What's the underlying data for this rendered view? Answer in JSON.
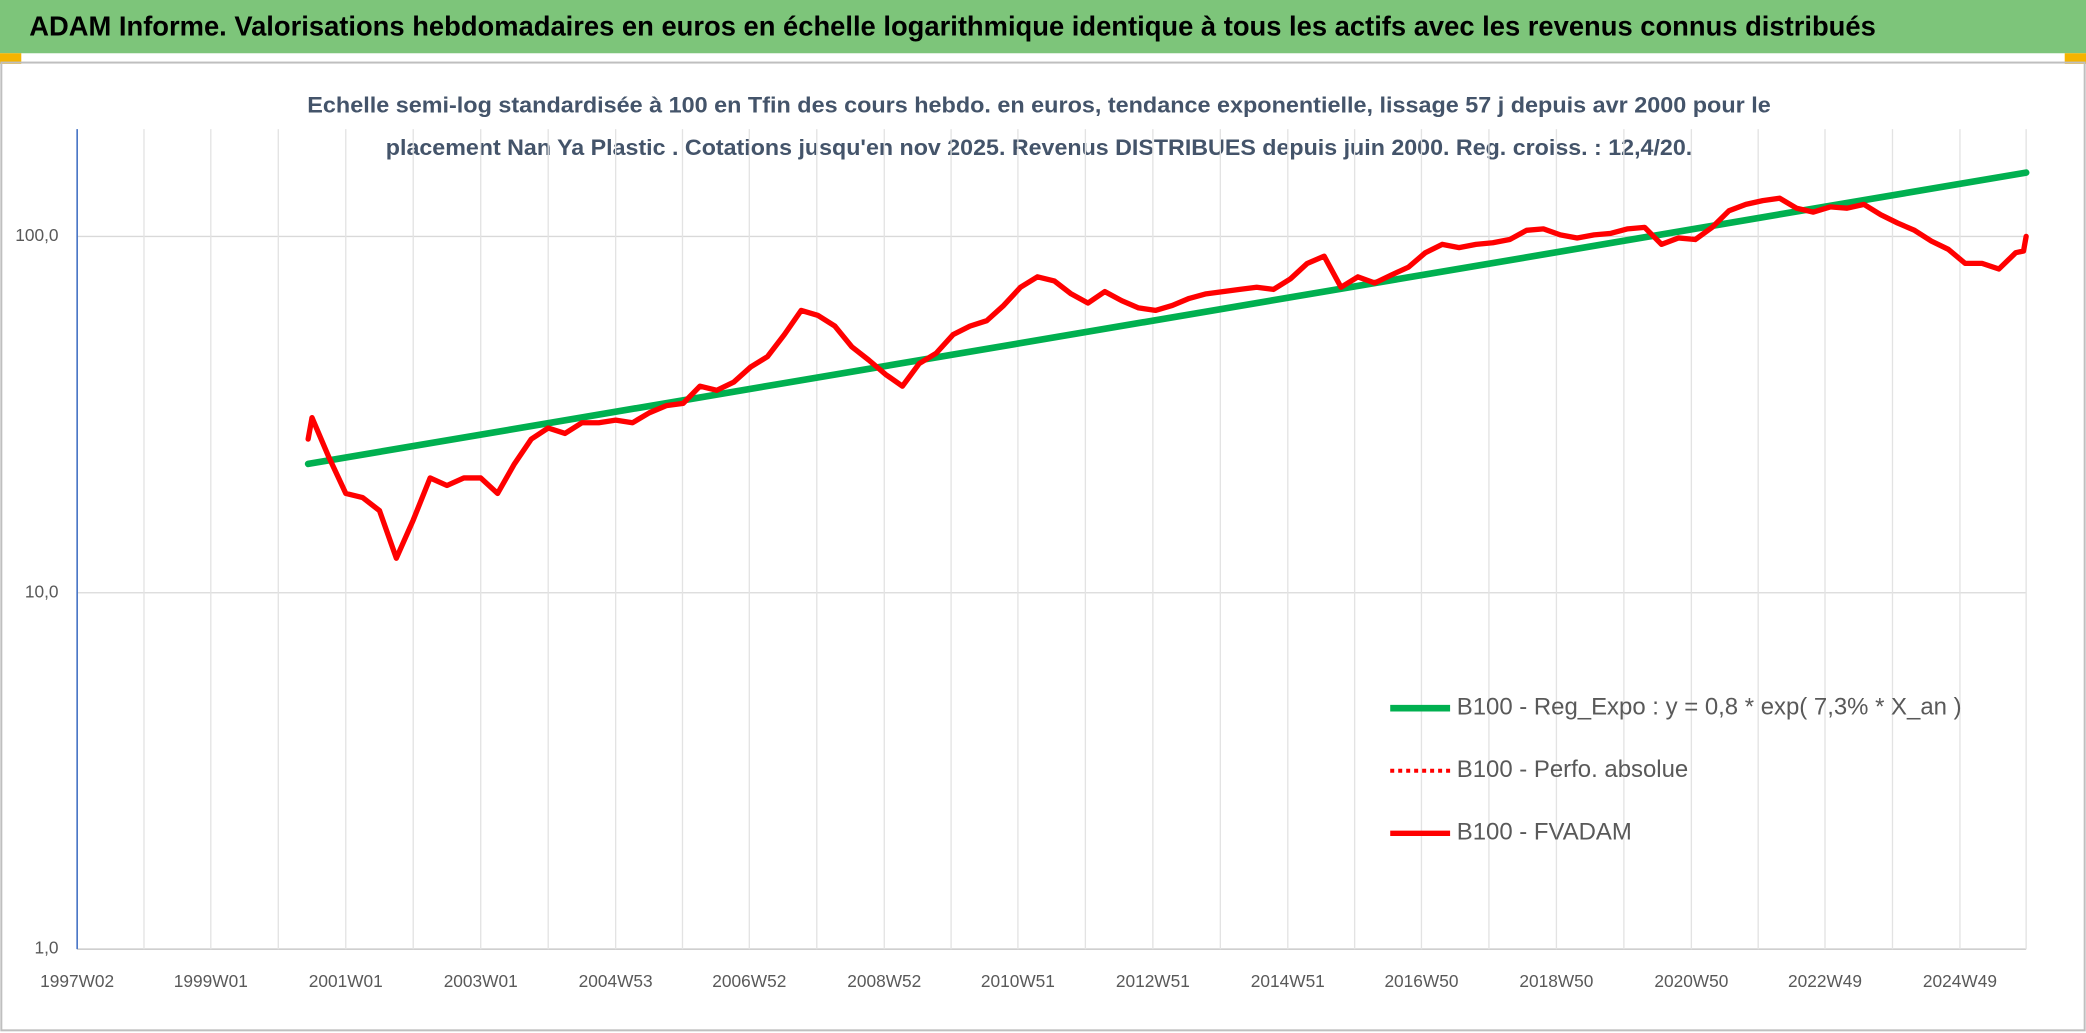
{
  "chart_data": {
    "type": "line",
    "title": "ADAM Informe. Valorisations hebdomadaires en euros en échelle logarithmique identique à tous les actifs avec les revenus connus distribués",
    "subtitle": [
      "Echelle semi-log standardisée à 100 en Tfin des cours hebdo. en euros, tendance exponentielle, lissage 57 j depuis avr 2000 pour le",
      "placement Nan Ya Plastic . Cotations jusqu'en nov 2025. Revenus DISTRIBUES depuis juin 2000. Reg. croiss. : 12,4/20."
    ],
    "log_y": true,
    "grid": true,
    "legend": "right",
    "xlim": [
      "1997W02",
      "2025W48"
    ],
    "xticks": [
      "1997W02",
      "1999W01",
      "2001W01",
      "2003W01",
      "2004W53",
      "2006W52",
      "2008W52",
      "2010W51",
      "2012W51",
      "2014W51",
      "2016W50",
      "2018W50",
      "2020W50",
      "2022W49",
      "2024W49"
    ],
    "ylim": [
      1,
      200
    ],
    "yticks": [
      {
        "value": 1,
        "label": "1,0"
      },
      {
        "value": 10,
        "label": "10,0"
      },
      {
        "value": 100,
        "label": "100,0"
      }
    ],
    "x": [
      "2000W24",
      "2000W27",
      "2000W40",
      "2001W01",
      "2001W14",
      "2001W27",
      "2001W40",
      "2002W01",
      "2002W14",
      "2002W27",
      "2002W40",
      "2003W01",
      "2003W14",
      "2003W27",
      "2003W40",
      "2004W01",
      "2004W14",
      "2004W27",
      "2004W40",
      "2005W01",
      "2005W14",
      "2005W27",
      "2005W40",
      "2006W01",
      "2006W14",
      "2006W27",
      "2006W40",
      "2007W01",
      "2007W14",
      "2007W27",
      "2007W40",
      "2008W01",
      "2008W14",
      "2008W27",
      "2008W40",
      "2009W01",
      "2009W14",
      "2009W27",
      "2009W40",
      "2010W01",
      "2010W14",
      "2010W27",
      "2010W40",
      "2011W01",
      "2011W14",
      "2011W27",
      "2011W40",
      "2012W01",
      "2012W14",
      "2012W27",
      "2012W40",
      "2013W01",
      "2013W14",
      "2013W27",
      "2013W40",
      "2014W01",
      "2014W14",
      "2014W27",
      "2014W40",
      "2015W01",
      "2015W14",
      "2015W27",
      "2015W40",
      "2016W01",
      "2016W14",
      "2016W27",
      "2016W40",
      "2017W01",
      "2017W14",
      "2017W27",
      "2017W40",
      "2018W01",
      "2018W14",
      "2018W27",
      "2018W40",
      "2019W01",
      "2019W14",
      "2019W27",
      "2019W40",
      "2020W01",
      "2020W14",
      "2020W27",
      "2020W40",
      "2021W01",
      "2021W14",
      "2021W27",
      "2021W40",
      "2022W01",
      "2022W14",
      "2022W27",
      "2022W40",
      "2023W01",
      "2023W14",
      "2023W27",
      "2023W40",
      "2024W01",
      "2024W14",
      "2024W27",
      "2024W40",
      "2025W01",
      "2025W14",
      "2025W27",
      "2025W40",
      "2025W46",
      "2025W48"
    ],
    "series": [
      {
        "name": "B100 - Reg_Expo : y = 0,8 * exp( 7,3% *  X_an )",
        "color": "#00b050",
        "style": "solid",
        "width": 5,
        "x": [
          "2000W24",
          "2025W48"
        ],
        "values": [
          23,
          151
        ]
      },
      {
        "name": "B100 - Perfo. absolue",
        "color": "#ff0000",
        "style": "dotted",
        "width": 3,
        "values": [
          27,
          31,
          24,
          19,
          18.5,
          17,
          12.5,
          16,
          21,
          20,
          21,
          21,
          19,
          23,
          27,
          29,
          28,
          30,
          30,
          30.5,
          30,
          32,
          33.5,
          34,
          38,
          37,
          39,
          43,
          46,
          53,
          62,
          60,
          56,
          49,
          45,
          41,
          38,
          44,
          47,
          53,
          56,
          58,
          64,
          72,
          77,
          75,
          69,
          65,
          70,
          66,
          63,
          62,
          64,
          67,
          69,
          70,
          71,
          72,
          71,
          76,
          84,
          88,
          72,
          77,
          74,
          78,
          82,
          90,
          95,
          93,
          95,
          96,
          98,
          104,
          105,
          101,
          99,
          101,
          102,
          105,
          106,
          95,
          99,
          98,
          106,
          118,
          123,
          126,
          128,
          120,
          117,
          121,
          120,
          123,
          115,
          109,
          104,
          97,
          92,
          84,
          84,
          81,
          90,
          91,
          100
        ]
      },
      {
        "name": "B100 - FVADAM",
        "color": "#ff0000",
        "style": "solid",
        "width": 4,
        "values": [
          27,
          31,
          24,
          19,
          18.5,
          17,
          12.5,
          16,
          21,
          20,
          21,
          21,
          19,
          23,
          27,
          29,
          28,
          30,
          30,
          30.5,
          30,
          32,
          33.5,
          34,
          38,
          37,
          39,
          43,
          46,
          53,
          62,
          60,
          56,
          49,
          45,
          41,
          38,
          44,
          47,
          53,
          56,
          58,
          64,
          72,
          77,
          75,
          69,
          65,
          70,
          66,
          63,
          62,
          64,
          67,
          69,
          70,
          71,
          72,
          71,
          76,
          84,
          88,
          72,
          77,
          74,
          78,
          82,
          90,
          95,
          93,
          95,
          96,
          98,
          104,
          105,
          101,
          99,
          101,
          102,
          105,
          106,
          95,
          99,
          98,
          106,
          118,
          123,
          126,
          128,
          120,
          117,
          121,
          120,
          123,
          115,
          109,
          104,
          97,
          92,
          84,
          84,
          81,
          90,
          91,
          100
        ]
      }
    ]
  }
}
